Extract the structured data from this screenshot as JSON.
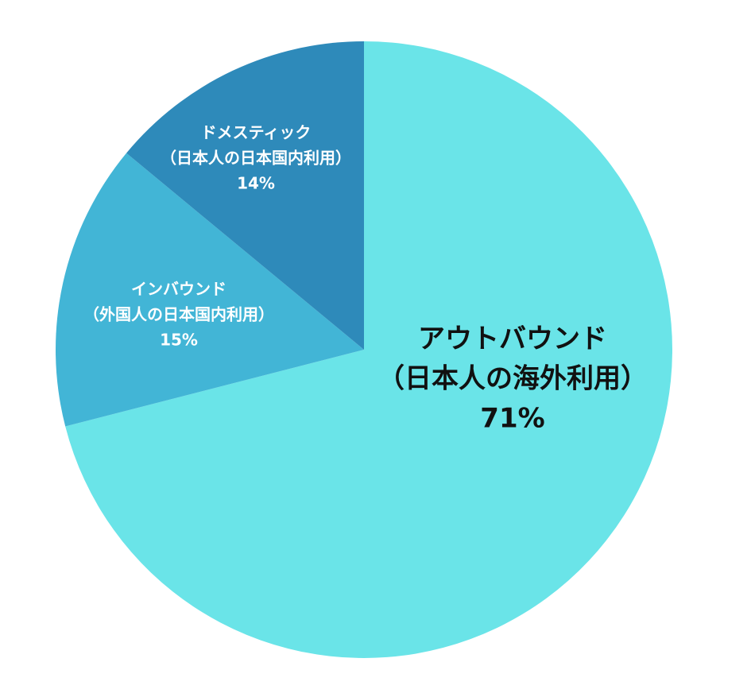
{
  "chart_data": {
    "type": "pie",
    "categories": [
      "アウトバウンド",
      "インバウンド",
      "ドメスティック"
    ],
    "category_notes": [
      "（日本人の海外利用）",
      "（外国人の日本国内利用）",
      "（日本人の日本国内利用）"
    ],
    "values": [
      71,
      15,
      14
    ],
    "value_labels": [
      "71%",
      "15%",
      "14%"
    ],
    "colors": [
      "#6ae4e8",
      "#42b5d6",
      "#2e8aba"
    ],
    "label_colors": [
      "#111111",
      "#ffffff",
      "#ffffff"
    ]
  }
}
